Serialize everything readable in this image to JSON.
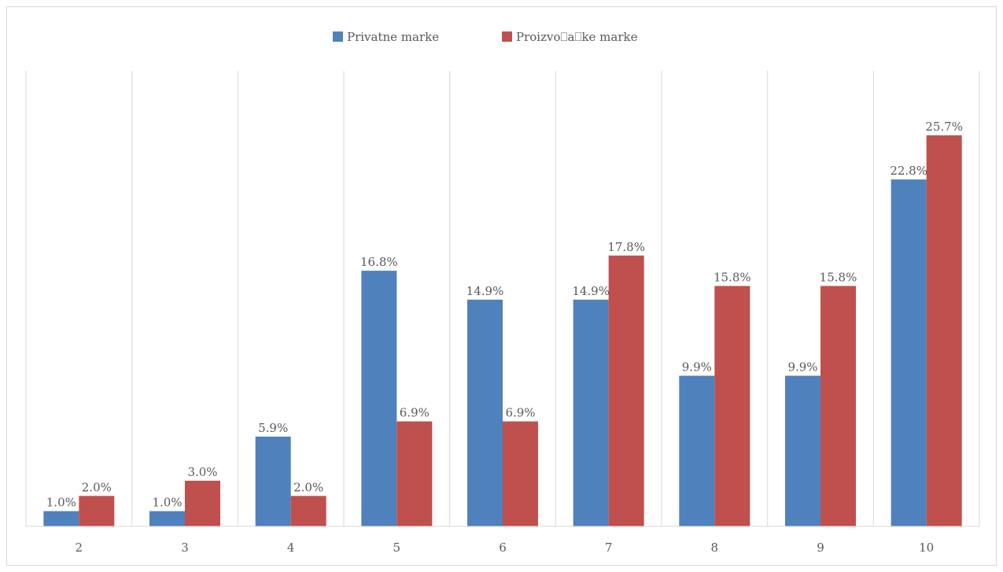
{
  "chart_data": {
    "type": "bar",
    "categories": [
      "2",
      "3",
      "4",
      "5",
      "6",
      "7",
      "8",
      "9",
      "10"
    ],
    "series": [
      {
        "name": "Privatne marke",
        "color": "#4f81bd",
        "values": [
          1.0,
          1.0,
          5.9,
          16.8,
          14.9,
          14.9,
          9.9,
          9.9,
          22.8
        ],
        "labels": [
          "1.0%",
          "1.0%",
          "5.9%",
          "16.8%",
          "14.9%",
          "14.9%",
          "9.9%",
          "9.9%",
          "22.8%"
        ]
      },
      {
        "name": "Proizvo⎕a⎕ke marke",
        "color": "#c0504d",
        "values": [
          2.0,
          3.0,
          2.0,
          6.9,
          6.9,
          17.8,
          15.8,
          15.8,
          25.7
        ],
        "labels": [
          "2.0%",
          "3.0%",
          "2.0%",
          "6.9%",
          "6.9%",
          "17.8%",
          "15.8%",
          "15.8%",
          "25.7%"
        ]
      }
    ],
    "ylim": [
      0,
      30
    ],
    "grid": "vertical",
    "legend_position": "top-center",
    "title": "",
    "xlabel": "",
    "ylabel": ""
  }
}
